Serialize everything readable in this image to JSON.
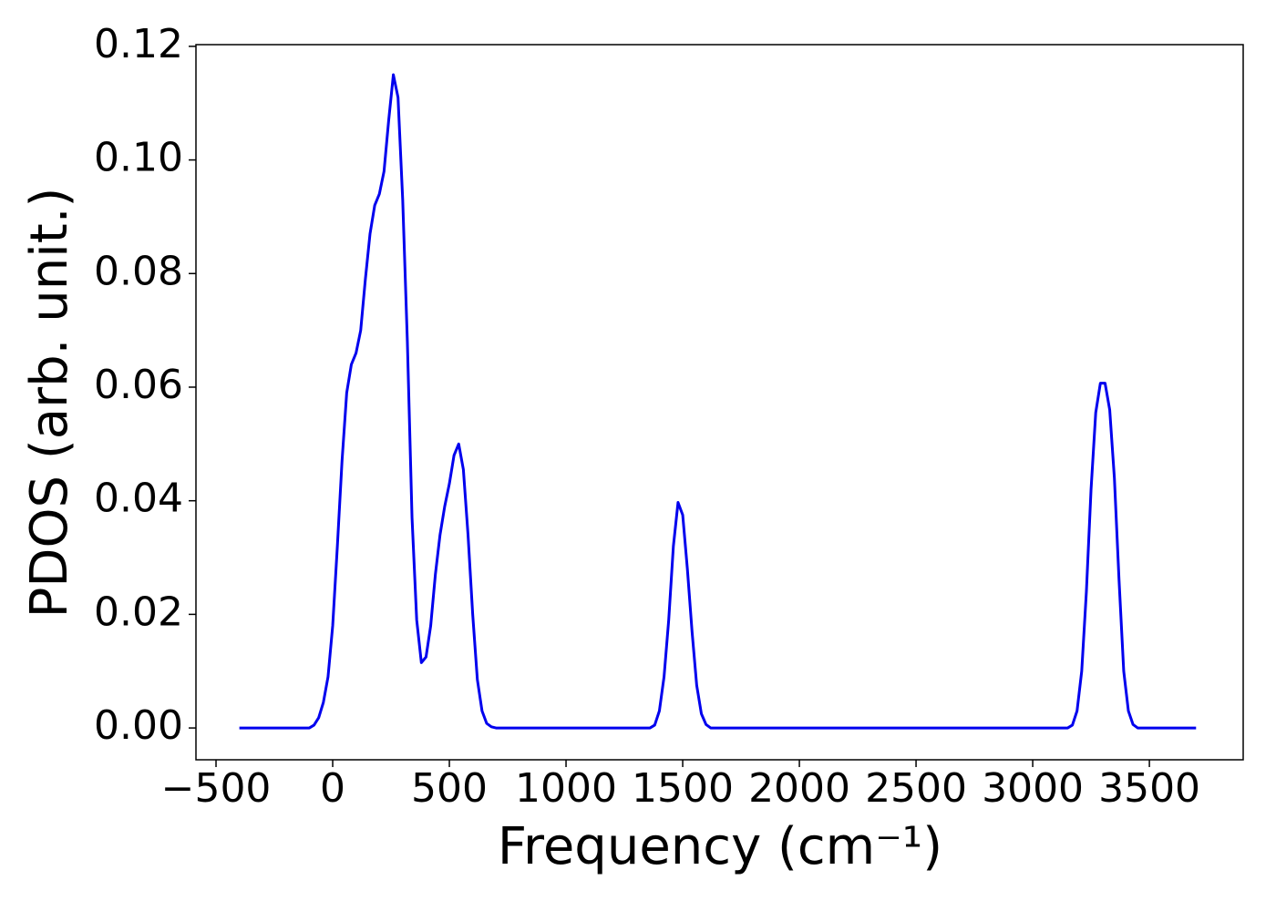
{
  "chart_data": {
    "type": "line",
    "x_label": "Frequency (cm⁻¹)",
    "y_label": "PDOS (arb. unit.)",
    "xlim": [
      -586,
      3902
    ],
    "ylim": [
      -0.0056,
      0.1203
    ],
    "xticks": [
      {
        "value": -500,
        "label": "−500"
      },
      0,
      500,
      1000,
      1500,
      2000,
      2500,
      3000,
      3500
    ],
    "yticks": [
      {
        "value": 0,
        "label": "0.00"
      },
      {
        "value": 0.02,
        "label": "0.02"
      },
      {
        "value": 0.04,
        "label": "0.04"
      },
      {
        "value": 0.06,
        "label": "0.06"
      },
      {
        "value": 0.08,
        "label": "0.08"
      },
      {
        "value": 0.1,
        "label": "0.10"
      },
      {
        "value": 0.12,
        "label": "0.12"
      }
    ],
    "grid": false,
    "series": [
      {
        "color": "#0000ee",
        "x": [
          -400,
          -100,
          -80,
          -60,
          -40,
          -20,
          0,
          20,
          40,
          60,
          80,
          100,
          120,
          140,
          160,
          180,
          200,
          220,
          240,
          260,
          280,
          300,
          320,
          340,
          360,
          380,
          400,
          420,
          440,
          460,
          480,
          500,
          520,
          540,
          560,
          580,
          600,
          620,
          640,
          660,
          680,
          700,
          1360,
          1380,
          1400,
          1420,
          1440,
          1460,
          1480,
          1500,
          1520,
          1540,
          1560,
          1580,
          1600,
          1620,
          3150,
          3170,
          3190,
          3210,
          3230,
          3250,
          3270,
          3290,
          3310,
          3330,
          3350,
          3370,
          3390,
          3410,
          3430,
          3450,
          3700
        ],
        "values": [
          0,
          0,
          0.0005,
          0.0018,
          0.0045,
          0.009,
          0.018,
          0.032,
          0.047,
          0.059,
          0.064,
          0.066,
          0.07,
          0.079,
          0.087,
          0.092,
          0.094,
          0.098,
          0.107,
          0.115,
          0.111,
          0.093,
          0.068,
          0.037,
          0.019,
          0.0115,
          0.0125,
          0.018,
          0.027,
          0.034,
          0.039,
          0.043,
          0.048,
          0.05,
          0.0455,
          0.034,
          0.02,
          0.0085,
          0.003,
          0.0008,
          0.0002,
          0,
          0,
          0.0005,
          0.003,
          0.009,
          0.019,
          0.032,
          0.0397,
          0.0375,
          0.028,
          0.017,
          0.0075,
          0.0025,
          0.0006,
          0,
          0,
          0.0005,
          0.003,
          0.01,
          0.024,
          0.042,
          0.0555,
          0.0607,
          0.0607,
          0.056,
          0.044,
          0.026,
          0.01,
          0.003,
          0.0006,
          0,
          0
        ]
      }
    ]
  }
}
